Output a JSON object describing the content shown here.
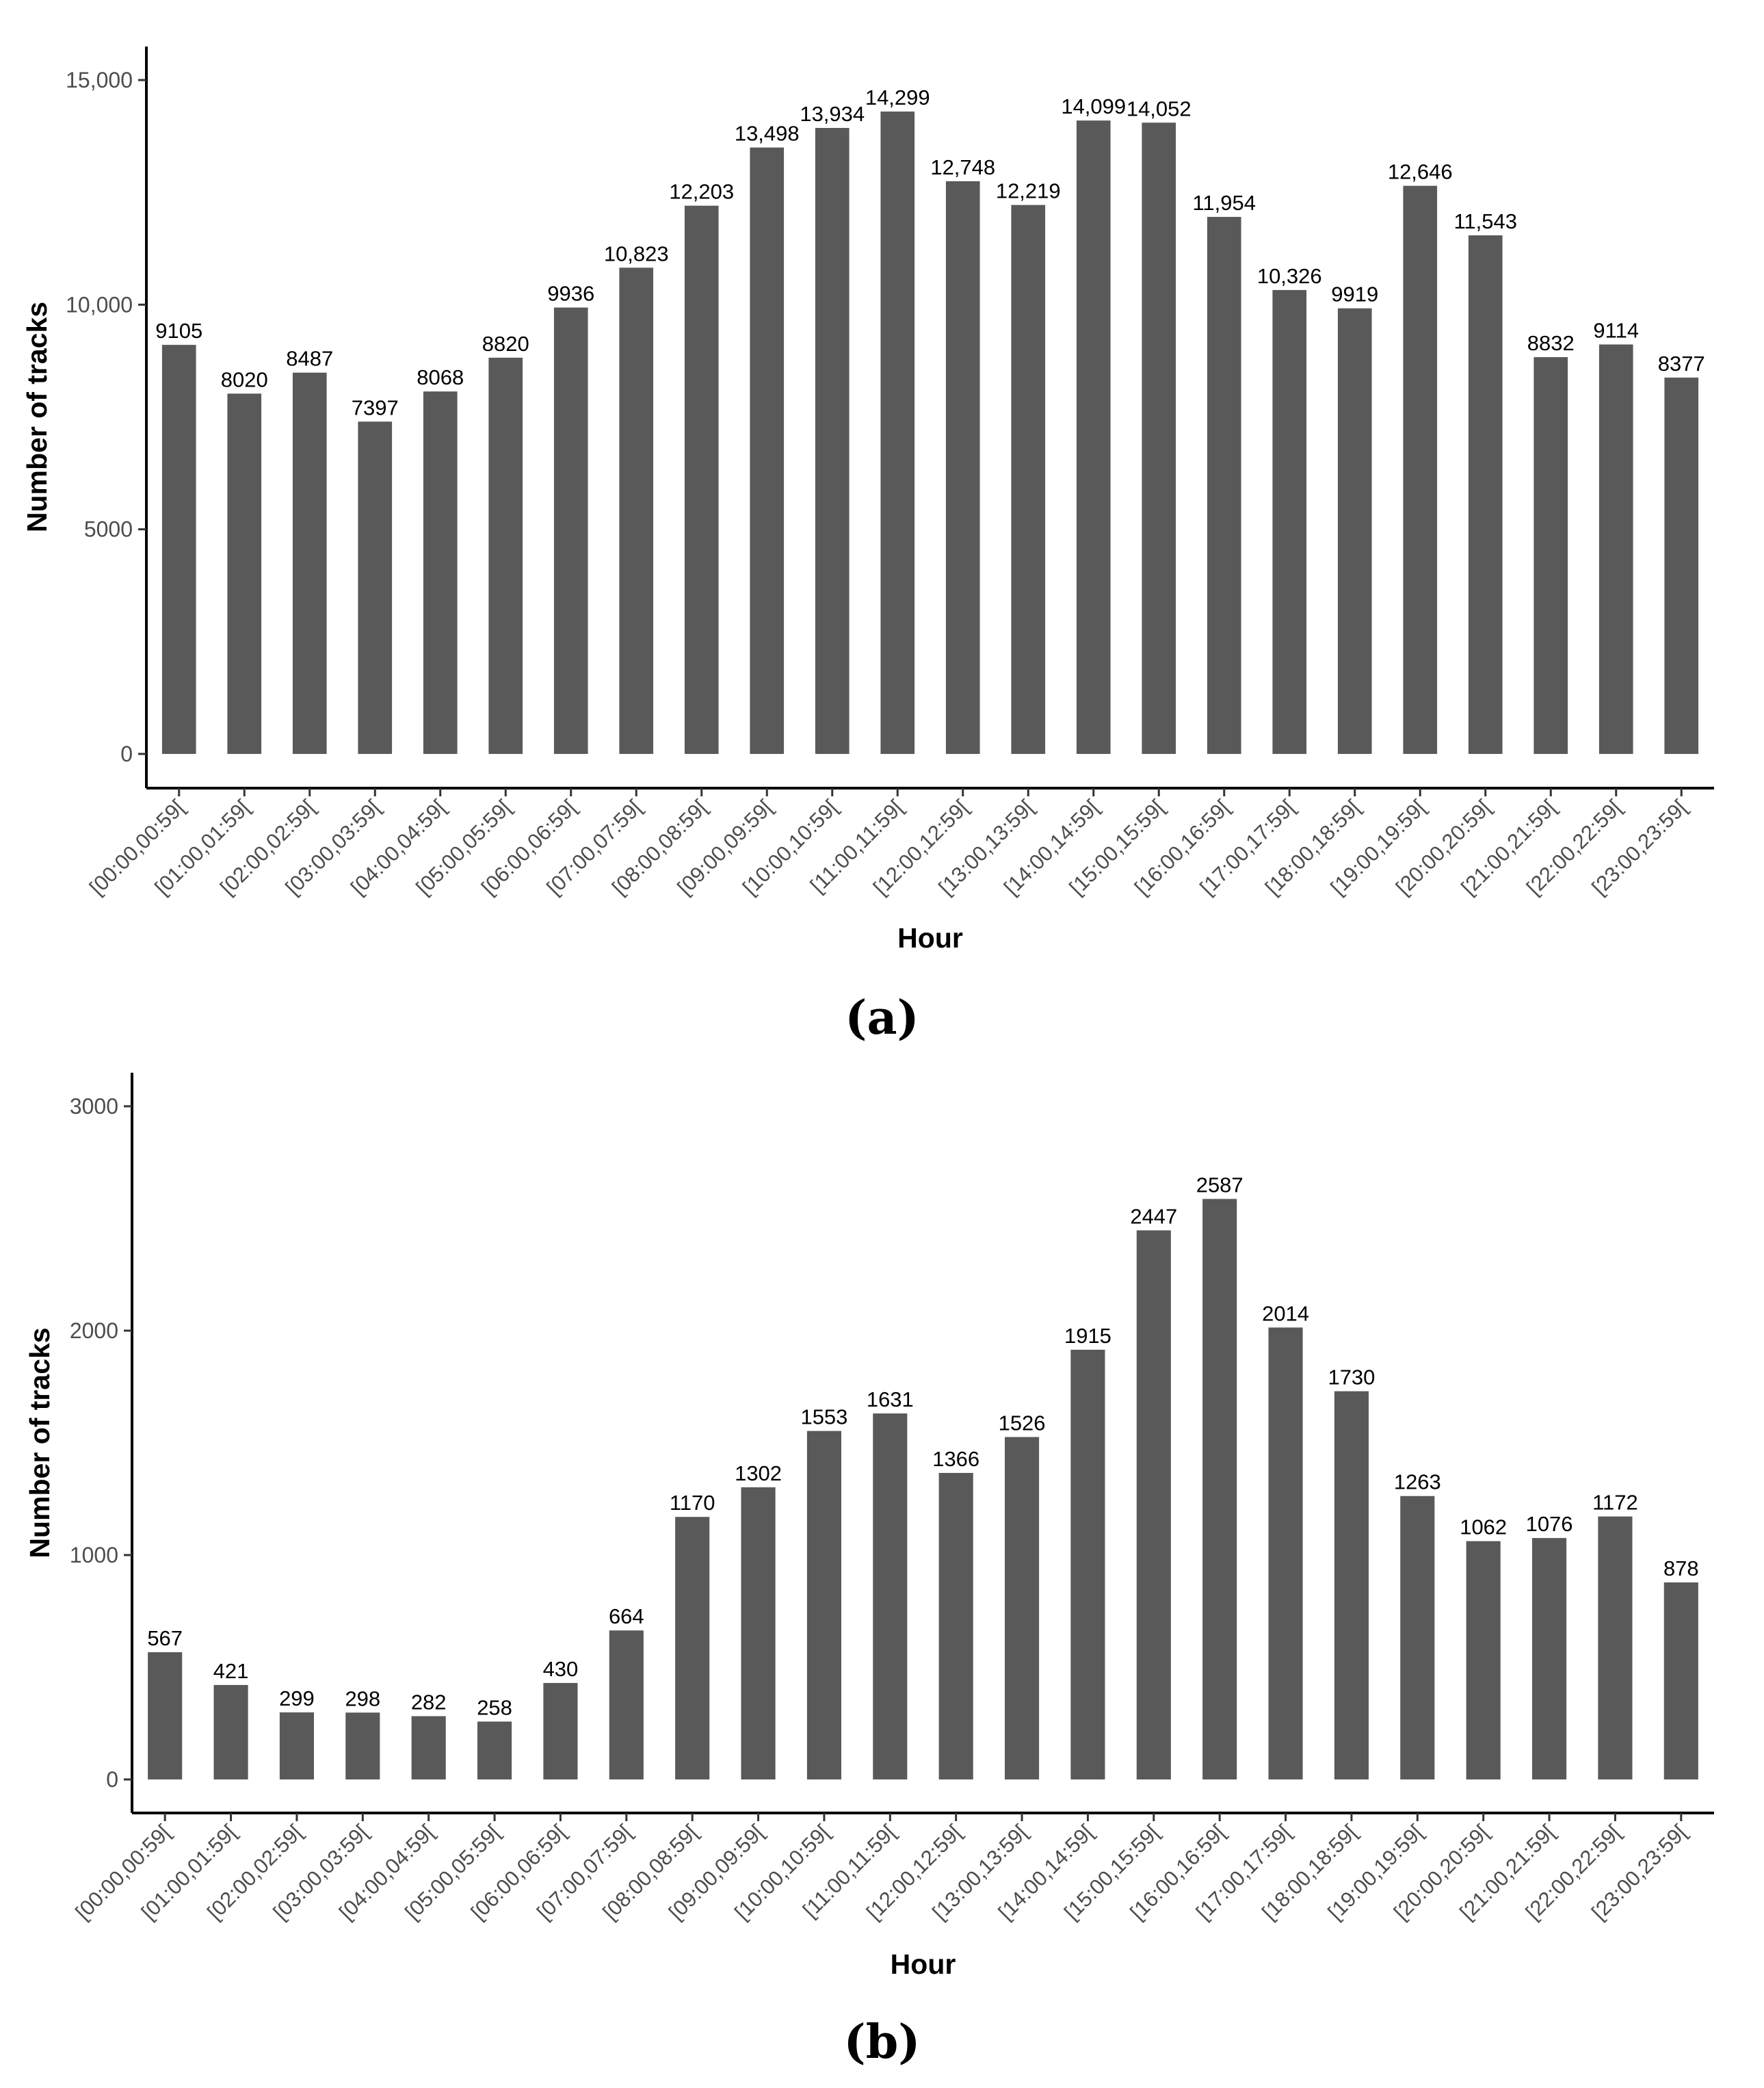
{
  "chart_data": [
    {
      "type": "bar",
      "caption": "(a)",
      "xlabel": "Hour",
      "ylabel": "Number of tracks",
      "ylim": [
        0,
        15000
      ],
      "yticks": [
        0,
        5000,
        10000,
        15000
      ],
      "ytick_labels": [
        "0",
        "5000",
        "10,000",
        "15,000"
      ],
      "bar_color": "#595959",
      "categories": [
        "[00:00,00:59[",
        "[01:00,01:59[",
        "[02:00,02:59[",
        "[03:00,03:59[",
        "[04:00,04:59[",
        "[05:00,05:59[",
        "[06:00,06:59[",
        "[07:00,07:59[",
        "[08:00,08:59[",
        "[09:00,09:59[",
        "[10:00,10:59[",
        "[11:00,11:59[",
        "[12:00,12:59[",
        "[13:00,13:59[",
        "[14:00,14:59[",
        "[15:00,15:59[",
        "[16:00,16:59[",
        "[17:00,17:59[",
        "[18:00,18:59[",
        "[19:00,19:59[",
        "[20:00,20:59[",
        "[21:00,21:59[",
        "[22:00,22:59[",
        "[23:00,23:59["
      ],
      "values": [
        9105,
        8020,
        8487,
        7397,
        8068,
        8820,
        9936,
        10823,
        12203,
        13498,
        13934,
        14299,
        12748,
        12219,
        14099,
        14052,
        11954,
        10326,
        9919,
        12646,
        11543,
        8832,
        9114,
        8377
      ],
      "value_labels": [
        "9105",
        "8020",
        "8487",
        "7397",
        "8068",
        "8820",
        "9936",
        "10,823",
        "12,203",
        "13,498",
        "13,934",
        "14,299",
        "12,748",
        "12,219",
        "14,099",
        "14,052",
        "11,954",
        "10,326",
        "9919",
        "12,646",
        "11,543",
        "8832",
        "9114",
        "8377"
      ],
      "grid": false
    },
    {
      "type": "bar",
      "caption": "(b)",
      "xlabel": "Hour",
      "ylabel": "Number of tracks",
      "ylim": [
        0,
        3000
      ],
      "yticks": [
        0,
        1000,
        2000,
        3000
      ],
      "ytick_labels": [
        "0",
        "1000",
        "2000",
        "3000"
      ],
      "bar_color": "#595959",
      "categories": [
        "[00:00,00:59[",
        "[01:00,01:59[",
        "[02:00,02:59[",
        "[03:00,03:59[",
        "[04:00,04:59[",
        "[05:00,05:59[",
        "[06:00,06:59[",
        "[07:00,07:59[",
        "[08:00,08:59[",
        "[09:00,09:59[",
        "[10:00,10:59[",
        "[11:00,11:59[",
        "[12:00,12:59[",
        "[13:00,13:59[",
        "[14:00,14:59[",
        "[15:00,15:59[",
        "[16:00,16:59[",
        "[17:00,17:59[",
        "[18:00,18:59[",
        "[19:00,19:59[",
        "[20:00,20:59[",
        "[21:00,21:59[",
        "[22:00,22:59[",
        "[23:00,23:59["
      ],
      "values": [
        567,
        421,
        299,
        298,
        282,
        258,
        430,
        664,
        1170,
        1302,
        1553,
        1631,
        1366,
        1526,
        1915,
        2447,
        2587,
        2014,
        1730,
        1263,
        1062,
        1076,
        1172,
        878
      ],
      "value_labels": [
        "567",
        "421",
        "299",
        "298",
        "282",
        "258",
        "430",
        "664",
        "1170",
        "1302",
        "1553",
        "1631",
        "1366",
        "1526",
        "1915",
        "2447",
        "2587",
        "2014",
        "1730",
        "1263",
        "1062",
        "1076",
        "1172",
        "878"
      ],
      "grid": false
    }
  ]
}
